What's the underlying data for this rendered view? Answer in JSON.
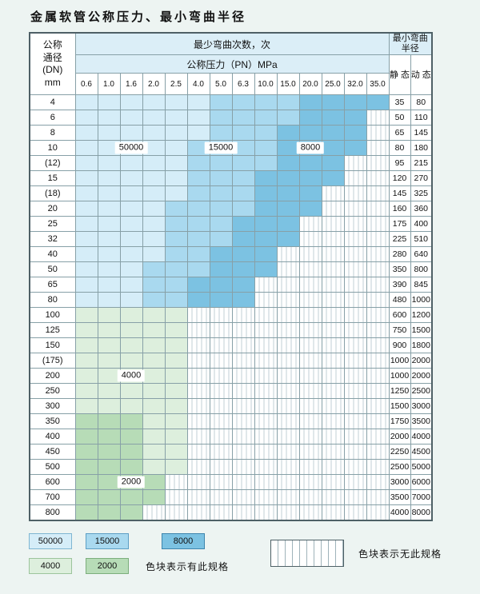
{
  "title": "金属软管公称压力、最小弯曲半径",
  "colors": {
    "A": "#d5edf8",
    "B": "#a9d9ef",
    "C": "#7cc2e2",
    "D": "#ddefdd",
    "E": "#b7dcb7"
  },
  "chart_data": {
    "type": "heatmap",
    "title": "金属软管公称压力、最小弯曲半径",
    "row_header_lines": [
      "公称",
      "通径",
      "(DN)",
      "mm"
    ],
    "col_group_label": "最少弯曲次数，次",
    "pressure_label": "公称压力（PN）MPa",
    "pressures": [
      "0.6",
      "1.0",
      "1.6",
      "2.0",
      "2.5",
      "4.0",
      "5.0",
      "6.3",
      "10.0",
      "15.0",
      "20.0",
      "25.0",
      "32.0",
      "35.0"
    ],
    "radius_label": "最小弯曲半径",
    "static_label": "静 态",
    "dynamic_label": "动 态",
    "legend_codes": {
      "A": 50000,
      "B": 15000,
      "C": 8000,
      "D": 4000,
      "E": 2000,
      "N": "无此规格"
    },
    "rows": [
      {
        "dn": "4",
        "cells": "AAAAAABBBBCCCC",
        "static": "35",
        "dynamic": "80"
      },
      {
        "dn": "6",
        "cells": "AAAAAABBBBCCCN",
        "static": "50",
        "dynamic": "110"
      },
      {
        "dn": "8",
        "cells": "AAAAAABBBCCCCN",
        "static": "65",
        "dynamic": "145"
      },
      {
        "dn": "10",
        "cells": "AAAAABBBBCCCCN",
        "static": "80",
        "dynamic": "180"
      },
      {
        "dn": "(12)",
        "cells": "AAAAABBBBCCCNN",
        "static": "95",
        "dynamic": "215"
      },
      {
        "dn": "15",
        "cells": "AAAAABBBCCCCNN",
        "static": "120",
        "dynamic": "270"
      },
      {
        "dn": "(18)",
        "cells": "AAAAABBBCCCNNN",
        "static": "145",
        "dynamic": "325"
      },
      {
        "dn": "20",
        "cells": "AAAABBBBCCCNNN",
        "static": "160",
        "dynamic": "360"
      },
      {
        "dn": "25",
        "cells": "AAAABBBCCCNNNN",
        "static": "175",
        "dynamic": "400"
      },
      {
        "dn": "32",
        "cells": "AAAABBBCCCNNNN",
        "static": "225",
        "dynamic": "510"
      },
      {
        "dn": "40",
        "cells": "AAAABBCCCNNNNN",
        "static": "280",
        "dynamic": "640"
      },
      {
        "dn": "50",
        "cells": "AAABBBCCCNNNNN",
        "static": "350",
        "dynamic": "800"
      },
      {
        "dn": "65",
        "cells": "AAABBCCCNNNNNN",
        "static": "390",
        "dynamic": "845"
      },
      {
        "dn": "80",
        "cells": "AAABBCCCNNNNNN",
        "static": "480",
        "dynamic": "1000"
      },
      {
        "dn": "100",
        "cells": "DDDDDNNNNNNNNN",
        "static": "600",
        "dynamic": "1200"
      },
      {
        "dn": "125",
        "cells": "DDDDDNNNNNNNNN",
        "static": "750",
        "dynamic": "1500"
      },
      {
        "dn": "150",
        "cells": "DDDDDNNNNNNNNN",
        "static": "900",
        "dynamic": "1800"
      },
      {
        "dn": "(175)",
        "cells": "DDDDDNNNNNNNNN",
        "static": "1000",
        "dynamic": "2000"
      },
      {
        "dn": "200",
        "cells": "DDDDDNNNNNNNNN",
        "static": "1000",
        "dynamic": "2000"
      },
      {
        "dn": "250",
        "cells": "DDDDDNNNNNNNNN",
        "static": "1250",
        "dynamic": "2500"
      },
      {
        "dn": "300",
        "cells": "DDDDDNNNNNNNNN",
        "static": "1500",
        "dynamic": "3000"
      },
      {
        "dn": "350",
        "cells": "EEEDDNNNNNNNNN",
        "static": "1750",
        "dynamic": "3500"
      },
      {
        "dn": "400",
        "cells": "EEEDDNNNNNNNNN",
        "static": "2000",
        "dynamic": "4000"
      },
      {
        "dn": "450",
        "cells": "EEEDDNNNNNNNNN",
        "static": "2250",
        "dynamic": "4500"
      },
      {
        "dn": "500",
        "cells": "EEEDDNNNNNNNNN",
        "static": "2500",
        "dynamic": "5000"
      },
      {
        "dn": "600",
        "cells": "EEEENNNNNNNNNN",
        "static": "3000",
        "dynamic": "6000"
      },
      {
        "dn": "700",
        "cells": "EEEENNNNNNNNNN",
        "static": "3500",
        "dynamic": "7000"
      },
      {
        "dn": "800",
        "cells": "EEENNNNNNNNNNN",
        "static": "4000",
        "dynamic": "8000"
      }
    ],
    "inline_labels": [
      {
        "row": "10",
        "col": 2,
        "text": "50000"
      },
      {
        "row": "10",
        "col": 6,
        "text": "15000"
      },
      {
        "row": "10",
        "col": 10,
        "text": "8000"
      },
      {
        "row": "200",
        "col": 2,
        "text": "4000"
      },
      {
        "row": "600",
        "col": 2,
        "text": "2000"
      }
    ]
  },
  "legend": {
    "row1": [
      {
        "code": "A",
        "label": "50000"
      },
      {
        "code": "B",
        "label": "15000"
      },
      {
        "code": "C",
        "label": "8000"
      }
    ],
    "row2": [
      {
        "code": "D",
        "label": "4000"
      },
      {
        "code": "E",
        "label": "2000"
      }
    ],
    "has_spec_text": "色块表示有此规格",
    "no_spec_text": "色块表示无此规格"
  }
}
